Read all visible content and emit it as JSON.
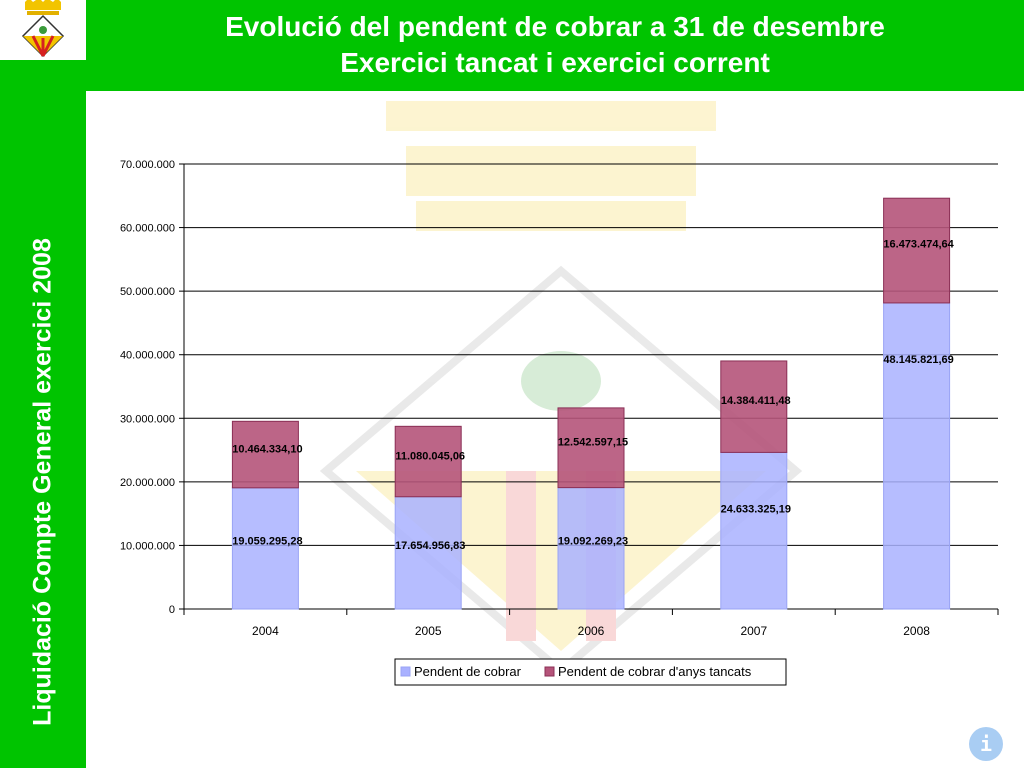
{
  "header": {
    "title_line1": "Evolució del pendent de cobrar a 31 de desembre",
    "title_line2": "Exercici tancat i exercici corrent"
  },
  "sidebar": {
    "text": "Liquidació Compte General exercici 2008"
  },
  "logo": {
    "icon": "municipal-coat-of-arms-icon"
  },
  "info_button": {
    "label": "i",
    "icon": "info-icon"
  },
  "colors": {
    "green": "#00c400",
    "series1": "#a9b1ff",
    "series2": "#b5547a"
  },
  "chart_data": {
    "type": "bar",
    "stacked": true,
    "categories": [
      "2004",
      "2005",
      "2006",
      "2007",
      "2008"
    ],
    "series": [
      {
        "name": "Pendent de cobrar",
        "values": [
          19059295.28,
          17654956.83,
          19092269.23,
          24633325.19,
          48145821.69
        ],
        "labels": [
          "19.059.295,28",
          "17.654.956,83",
          "19.092.269,23",
          "24.633.325,19",
          "48.145.821,69"
        ]
      },
      {
        "name": "Pendent de cobrar d'anys tancats",
        "values": [
          10464334.1,
          11080045.06,
          12542597.15,
          14384411.48,
          16473474.64
        ],
        "labels": [
          "10.464.334,10",
          "11.080.045,06",
          "12.542.597,15",
          "14.384.411,48",
          "16.473.474,64"
        ]
      }
    ],
    "ylim": [
      0,
      70000000
    ],
    "yticks": [
      "0",
      "10.000.000",
      "20.000.000",
      "30.000.000",
      "40.000.000",
      "50.000.000",
      "60.000.000",
      "70.000.000"
    ],
    "ytick_values": [
      0,
      10000000,
      20000000,
      30000000,
      40000000,
      50000000,
      60000000,
      70000000
    ],
    "grid": true,
    "legend_position": "bottom"
  }
}
